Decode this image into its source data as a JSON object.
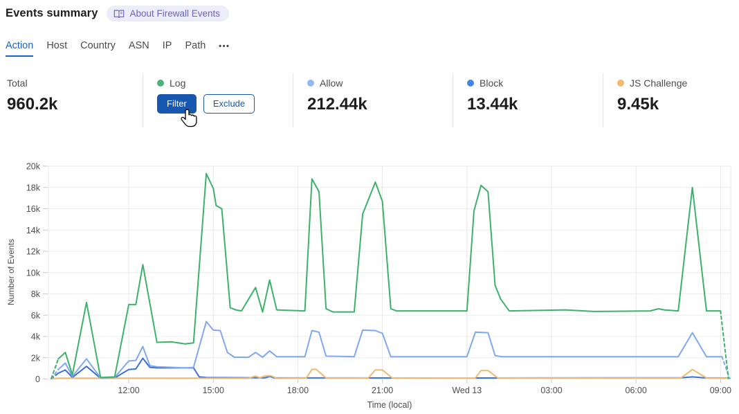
{
  "header": {
    "title": "Events summary",
    "about_badge": "About Firewall Events"
  },
  "tabs": {
    "items": [
      {
        "label": "Action",
        "active": true
      },
      {
        "label": "Host"
      },
      {
        "label": "Country"
      },
      {
        "label": "ASN"
      },
      {
        "label": "IP"
      },
      {
        "label": "Path"
      }
    ],
    "more_icon": "•••"
  },
  "stats": {
    "total": {
      "label": "Total",
      "value": "960.2k"
    },
    "log": {
      "label": "Log",
      "dot_color": "#46b475",
      "filter_label": "Filter",
      "exclude_label": "Exclude"
    },
    "allow": {
      "label": "Allow",
      "dot_color": "#91b8f4",
      "value": "212.44k"
    },
    "block": {
      "label": "Block",
      "dot_color": "#4384ea",
      "value": "13.44k"
    },
    "js_challenge": {
      "label": "JS Challenge",
      "dot_color": "#f2ba6b",
      "value": "9.45k"
    }
  },
  "chart_data": {
    "type": "line",
    "unit": "thousands of events (k)",
    "grid": true,
    "legend_position": "stat cards above chart",
    "x_axis": {
      "label": "Time (local)",
      "range": [
        -2.85,
        21.36
      ],
      "ticks": [
        {
          "t": 0,
          "label": "12:00"
        },
        {
          "t": 3,
          "label": "15:00"
        },
        {
          "t": 6,
          "label": "18:00"
        },
        {
          "t": 9,
          "label": "21:00"
        },
        {
          "t": 12,
          "label": "Wed 13"
        },
        {
          "t": 15,
          "label": "03:00"
        },
        {
          "t": 18,
          "label": "06:00"
        },
        {
          "t": 21,
          "label": "09:00"
        }
      ]
    },
    "y_axis": {
      "label": "Number of Events",
      "max": 20,
      "ticks": [
        {
          "v": 0,
          "label": "0"
        },
        {
          "v": 2,
          "label": "2k"
        },
        {
          "v": 4,
          "label": "4k"
        },
        {
          "v": 6,
          "label": "6k"
        },
        {
          "v": 8,
          "label": "8k"
        },
        {
          "v": 10,
          "label": "10k"
        },
        {
          "v": 12,
          "label": "12k"
        },
        {
          "v": 14,
          "label": "14k"
        },
        {
          "v": 16,
          "label": "16k"
        },
        {
          "v": 18,
          "label": "18k"
        },
        {
          "v": 20,
          "label": "20k"
        }
      ]
    },
    "series": [
      {
        "name": "Log",
        "color": "#3bb269",
        "dash_first": true,
        "dash_last": true,
        "points": [
          [
            -2.75,
            0.05
          ],
          [
            -2.5,
            1.9
          ],
          [
            -2.25,
            2.5
          ],
          [
            -2.0,
            0.4
          ],
          [
            -1.5,
            7.2
          ],
          [
            -1.0,
            0.15
          ],
          [
            -0.5,
            0.2
          ],
          [
            0,
            7.0
          ],
          [
            0.25,
            7.0
          ],
          [
            0.5,
            10.75
          ],
          [
            1.0,
            3.45
          ],
          [
            1.5,
            3.5
          ],
          [
            2.0,
            3.3
          ],
          [
            2.3,
            3.4
          ],
          [
            2.75,
            19.3
          ],
          [
            3.0,
            17.9
          ],
          [
            3.1,
            16.3
          ],
          [
            3.3,
            16.0
          ],
          [
            3.6,
            6.7
          ],
          [
            3.8,
            6.5
          ],
          [
            4.0,
            6.4
          ],
          [
            4.5,
            8.6
          ],
          [
            4.75,
            6.3
          ],
          [
            5.0,
            9.3
          ],
          [
            5.25,
            6.5
          ],
          [
            6.25,
            6.4
          ],
          [
            6.5,
            18.8
          ],
          [
            6.75,
            17.6
          ],
          [
            7.0,
            6.6
          ],
          [
            7.25,
            6.3
          ],
          [
            8.0,
            6.3
          ],
          [
            8.3,
            15.5
          ],
          [
            8.75,
            18.5
          ],
          [
            9.0,
            16.7
          ],
          [
            9.3,
            6.6
          ],
          [
            9.5,
            6.4
          ],
          [
            12.0,
            6.4
          ],
          [
            12.25,
            15.8
          ],
          [
            12.5,
            18.2
          ],
          [
            12.75,
            17.6
          ],
          [
            13.0,
            8.8
          ],
          [
            13.2,
            7.5
          ],
          [
            13.5,
            6.4
          ],
          [
            15.5,
            6.5
          ],
          [
            16.5,
            6.35
          ],
          [
            18.5,
            6.4
          ],
          [
            18.8,
            6.6
          ],
          [
            19.0,
            6.5
          ],
          [
            19.5,
            6.4
          ],
          [
            20.0,
            18.0
          ],
          [
            20.5,
            6.4
          ],
          [
            21.0,
            6.4
          ],
          [
            21.28,
            0.05
          ]
        ]
      },
      {
        "name": "Allow",
        "color": "#7fa8f0",
        "dash_first": true,
        "dash_last": true,
        "points": [
          [
            -2.75,
            0.05
          ],
          [
            -2.5,
            0.9
          ],
          [
            -2.25,
            1.5
          ],
          [
            -2.0,
            0.25
          ],
          [
            -1.5,
            1.9
          ],
          [
            -1.0,
            0.12
          ],
          [
            -0.5,
            0.15
          ],
          [
            0,
            1.7
          ],
          [
            0.25,
            1.75
          ],
          [
            0.5,
            3.05
          ],
          [
            0.75,
            1.25
          ],
          [
            1.0,
            1.15
          ],
          [
            2.0,
            1.05
          ],
          [
            2.3,
            1.1
          ],
          [
            2.75,
            5.4
          ],
          [
            3.0,
            4.6
          ],
          [
            3.25,
            4.55
          ],
          [
            3.5,
            2.5
          ],
          [
            3.75,
            2.05
          ],
          [
            4.25,
            2.05
          ],
          [
            4.5,
            2.5
          ],
          [
            4.75,
            2.05
          ],
          [
            5.0,
            2.65
          ],
          [
            5.25,
            2.1
          ],
          [
            6.25,
            2.1
          ],
          [
            6.5,
            4.55
          ],
          [
            6.75,
            4.4
          ],
          [
            7.0,
            2.15
          ],
          [
            8.0,
            2.1
          ],
          [
            8.3,
            4.6
          ],
          [
            8.75,
            4.55
          ],
          [
            9.0,
            4.3
          ],
          [
            9.3,
            2.1
          ],
          [
            12.0,
            2.1
          ],
          [
            12.3,
            4.4
          ],
          [
            12.75,
            4.35
          ],
          [
            13.0,
            2.2
          ],
          [
            13.25,
            2.1
          ],
          [
            19.5,
            2.1
          ],
          [
            20.0,
            4.35
          ],
          [
            20.5,
            2.1
          ],
          [
            21.05,
            2.1
          ],
          [
            21.32,
            0.05
          ]
        ]
      },
      {
        "name": "Block",
        "color": "#3a6fda",
        "dash_first": true,
        "dash_last": false,
        "points": [
          [
            -2.75,
            0.03
          ],
          [
            -2.5,
            0.55
          ],
          [
            -2.25,
            0.85
          ],
          [
            -2.0,
            0.15
          ],
          [
            -1.5,
            1.2
          ],
          [
            -1.0,
            0.08
          ],
          [
            -0.5,
            0.1
          ],
          [
            0,
            0.9
          ],
          [
            0.25,
            0.95
          ],
          [
            0.5,
            1.95
          ],
          [
            0.75,
            1.1
          ],
          [
            1.0,
            1.05
          ],
          [
            2.3,
            1.05
          ],
          [
            2.5,
            0.2
          ],
          [
            2.75,
            0.15
          ],
          [
            4.85,
            0.12
          ],
          [
            5.0,
            0.25
          ],
          [
            5.15,
            0.12
          ],
          [
            12.0,
            0.1
          ],
          [
            19.6,
            0.12
          ],
          [
            20.0,
            0.2
          ],
          [
            20.4,
            0.12
          ],
          [
            21.3,
            0.1
          ]
        ]
      },
      {
        "name": "JS Challenge",
        "color": "#efb96d",
        "dash_first": false,
        "dash_last": false,
        "points": [
          [
            -2.75,
            0.02
          ],
          [
            -2.5,
            0.08
          ],
          [
            4.25,
            0.08
          ],
          [
            4.5,
            0.28
          ],
          [
            4.65,
            0.12
          ],
          [
            4.85,
            0.3
          ],
          [
            5.05,
            0.3
          ],
          [
            5.25,
            0.08
          ],
          [
            6.3,
            0.1
          ],
          [
            6.5,
            0.92
          ],
          [
            6.65,
            0.92
          ],
          [
            7.0,
            0.1
          ],
          [
            8.5,
            0.1
          ],
          [
            8.75,
            0.85
          ],
          [
            9.0,
            0.85
          ],
          [
            9.35,
            0.1
          ],
          [
            12.3,
            0.1
          ],
          [
            12.5,
            0.8
          ],
          [
            12.75,
            0.8
          ],
          [
            13.1,
            0.1
          ],
          [
            19.6,
            0.1
          ],
          [
            20.0,
            0.9
          ],
          [
            20.5,
            0.1
          ],
          [
            21.35,
            0.08
          ]
        ]
      }
    ]
  }
}
